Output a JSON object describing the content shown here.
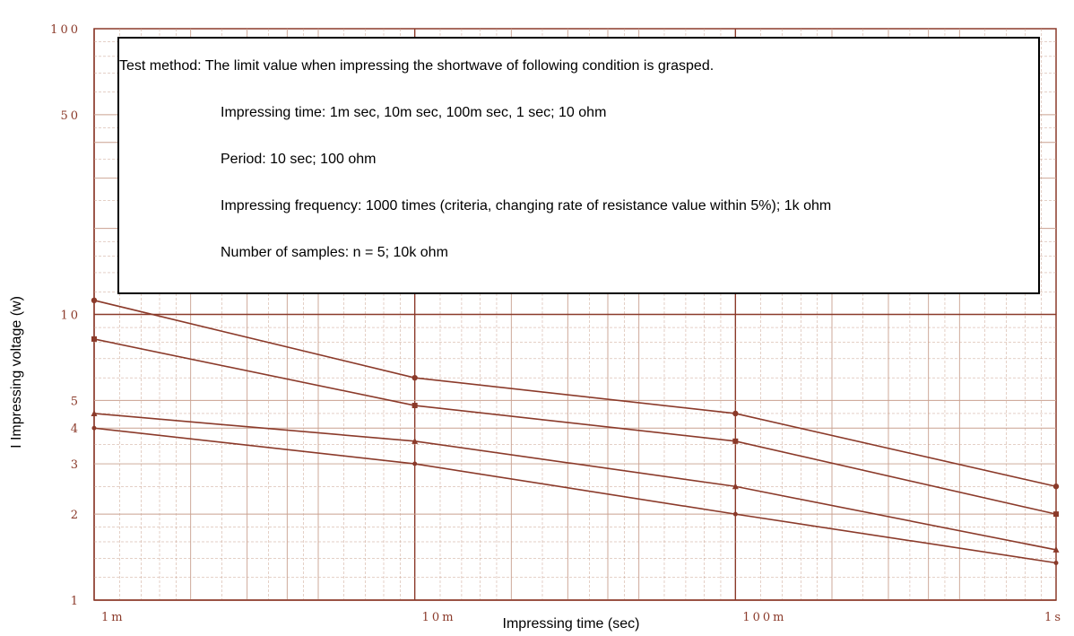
{
  "chart_data": {
    "type": "line",
    "xlabel": "Impressing time (sec)",
    "ylabel": "I Impressing voltage (w)",
    "x_scale": "log",
    "y_scale": "log",
    "xlim": [
      0.001,
      1
    ],
    "ylim": [
      1,
      100
    ],
    "x_ticks": [
      {
        "value": 0.001,
        "label": "1m"
      },
      {
        "value": 0.01,
        "label": "10m"
      },
      {
        "value": 0.1,
        "label": "100m"
      },
      {
        "value": 1,
        "label": "1s"
      }
    ],
    "y_ticks": [
      {
        "value": 100,
        "label": "100"
      },
      {
        "value": 50,
        "label": "50"
      },
      {
        "value": 10,
        "label": "10"
      },
      {
        "value": 5,
        "label": "5"
      },
      {
        "value": 4,
        "label": "4"
      },
      {
        "value": 3,
        "label": "3"
      },
      {
        "value": 2,
        "label": "2"
      },
      {
        "value": 1,
        "label": "1"
      }
    ],
    "grid": true,
    "line_color": "#8b3a2a",
    "grid_color": "#c9a08f",
    "x": [
      0.001,
      0.01,
      0.1,
      1
    ],
    "series": [
      {
        "values": [
          11.2,
          6.0,
          4.5,
          2.5
        ],
        "marker": "circle"
      },
      {
        "values": [
          8.2,
          4.8,
          3.6,
          2.0
        ],
        "marker": "square"
      },
      {
        "values": [
          4.5,
          3.6,
          2.5,
          1.5
        ],
        "marker": "triangle"
      },
      {
        "values": [
          4.0,
          3.0,
          2.0,
          1.35
        ],
        "marker": "dot"
      }
    ]
  },
  "method_box": {
    "title": "Test method: The limit value when impressing the shortwave of following condition is grasped.",
    "lines": [
      "Impressing time: 1m sec, 10m sec, 100m sec, 1 sec; 10 ohm",
      "Period: 10 sec; 100 ohm",
      "Impressing frequency: 1000 times (criteria, changing rate of resistance value within 5%); 1k ohm",
      "Number of samples: n = 5; 10k ohm"
    ]
  }
}
